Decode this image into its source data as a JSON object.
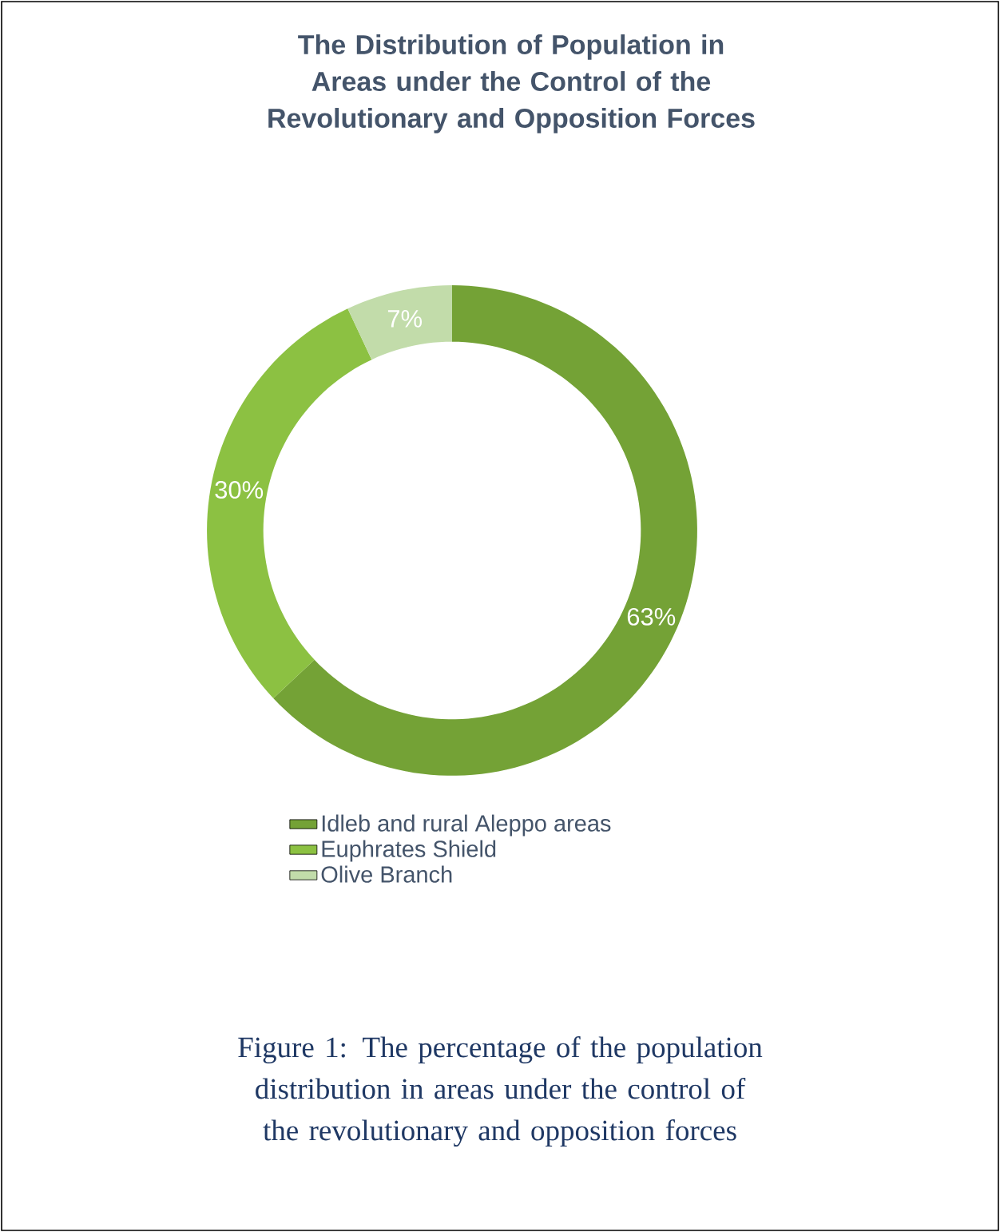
{
  "chart_data": {
    "type": "donut",
    "title": "The Distribution of Population in Areas under the Control of the Revolutionary and Opposition Forces",
    "categories": [
      "Idleb and rural Aleppo areas",
      "Euphrates Shield",
      "Olive Branch"
    ],
    "values": [
      63,
      30,
      7
    ],
    "colors": [
      "#74a236",
      "#8cc142",
      "#c2dcaa"
    ],
    "value_labels": [
      "63%",
      "30%",
      "7%"
    ],
    "legend": "bottom",
    "annotations": [
      "Figure 1: The percentage of the population distribution in areas under the control of the revolutionary and opposition forces"
    ]
  }
}
